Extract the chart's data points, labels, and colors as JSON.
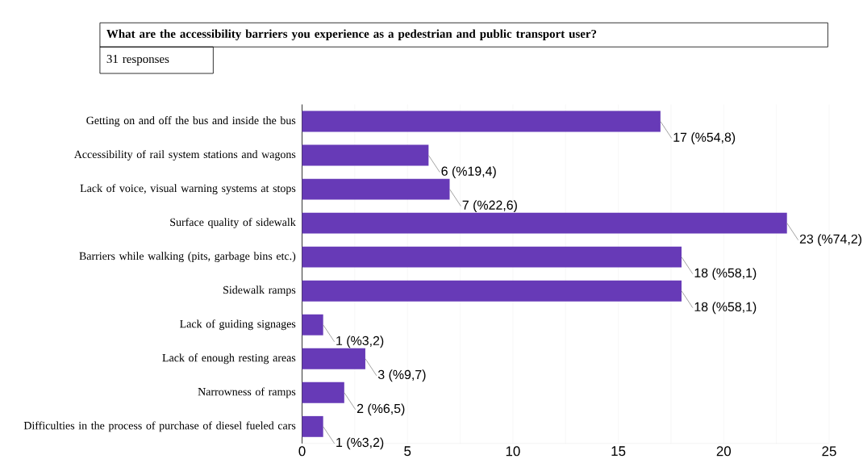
{
  "chart_data": {
    "type": "bar",
    "orientation": "horizontal",
    "title": "What are the accessibility barriers you experience as a pedestrian and public transport user?",
    "subtitle": "31 responses",
    "categories": [
      "Getting on and off the bus and inside the bus",
      "Accessibility of rail system stations and wagons",
      "Lack of voice, visual warning systems at stops",
      "Surface quality of sidewalk",
      "Barriers while walking (pits, garbage bins etc.)",
      "Sidewalk ramps",
      "Lack of guiding signages",
      "Lack of enough resting areas",
      "Narrowness of ramps",
      "Difficulties in the process of purchase of diesel fueled cars"
    ],
    "values": [
      17,
      6,
      7,
      23,
      18,
      18,
      1,
      3,
      2,
      1
    ],
    "value_labels": [
      "17 (%54,8)",
      "6 (%19,4)",
      "7 (%22,6)",
      "23 (%74,2)",
      "18 (%58,1)",
      "18 (%58,1)",
      "1 (%3,2)",
      "3 (%9,7)",
      "2 (%6,5)",
      "1 (%3,2)"
    ],
    "color": "#673ab7",
    "xlim": [
      0,
      25
    ],
    "xticks": [
      0,
      5,
      10,
      15,
      20,
      25
    ],
    "grid": "x"
  }
}
